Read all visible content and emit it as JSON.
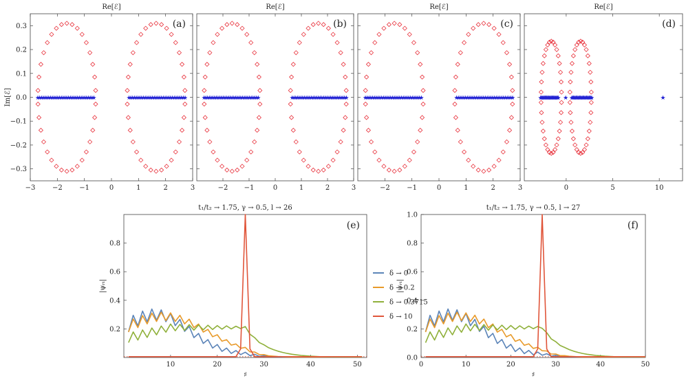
{
  "chart_data": [
    {
      "type": "scatter",
      "panel_label": "(a)",
      "title": "Re[ℰ]",
      "ylabel": "Im[ℰ]",
      "xlim": [
        -3,
        3
      ],
      "ylim": [
        -0.35,
        0.35
      ],
      "xticks": [
        -3,
        -2,
        -1,
        0,
        1,
        2,
        3
      ],
      "yticks": [
        -0.3,
        -0.2,
        -0.1,
        0.0,
        0.1,
        0.2,
        0.3
      ],
      "ytick_labels": [
        "−0.3",
        "−0.2",
        "−0.1",
        "0.0",
        "0.1",
        "0.2",
        "0.3"
      ],
      "xtick_labels": [
        "−3",
        "−2",
        "−1",
        "0",
        "1",
        "2",
        "3"
      ],
      "ellipse_left": {
        "cx": -1.65,
        "rx": 1.07,
        "ry": 0.31,
        "n": 34
      },
      "ellipse_right": {
        "cx": 1.65,
        "rx": 1.07,
        "ry": 0.31,
        "n": 34
      },
      "real_segments": [
        [
          -2.72,
          -0.65
        ],
        [
          0.65,
          2.72
        ]
      ],
      "real_points_per_segment": 32,
      "extra_real_points": [],
      "colors": {
        "open": "#e8323c",
        "real": "#2323d4"
      }
    },
    {
      "type": "scatter",
      "panel_label": "(b)",
      "title": "Re[ℰ]",
      "ylabel": "",
      "xlim": [
        -3,
        3
      ],
      "ylim": [
        -0.35,
        0.35
      ],
      "xticks": [
        -2,
        -1,
        0,
        1,
        2,
        3
      ],
      "xtick_labels": [
        "−2",
        "−1",
        "0",
        "1",
        "2",
        "3"
      ],
      "ellipse_left": {
        "cx": -1.65,
        "rx": 1.07,
        "ry": 0.31,
        "n": 34
      },
      "ellipse_right": {
        "cx": 1.65,
        "rx": 1.07,
        "ry": 0.31,
        "n": 34
      },
      "real_segments": [
        [
          -2.72,
          -0.65
        ],
        [
          0.65,
          2.72
        ]
      ],
      "real_points_per_segment": 32,
      "extra_real_points": [],
      "colors": {
        "open": "#e8323c",
        "real": "#2323d4"
      }
    },
    {
      "type": "scatter",
      "panel_label": "(c)",
      "title": "Re[ℰ]",
      "ylabel": "",
      "xlim": [
        -3,
        3
      ],
      "ylim": [
        -0.35,
        0.35
      ],
      "xticks": [
        -2,
        -1,
        0,
        1,
        2,
        3
      ],
      "xtick_labels": [
        "−2",
        "−1",
        "0",
        "1",
        "2",
        "3"
      ],
      "ellipse_left": {
        "cx": -1.65,
        "rx": 1.07,
        "ry": 0.31,
        "n": 34
      },
      "ellipse_right": {
        "cx": 1.65,
        "rx": 1.07,
        "ry": 0.31,
        "n": 34
      },
      "real_segments": [
        [
          -2.72,
          -0.65
        ],
        [
          0.65,
          2.72
        ]
      ],
      "real_points_per_segment": 32,
      "extra_real_points": [],
      "colors": {
        "open": "#e8323c",
        "real": "#2323d4"
      }
    },
    {
      "type": "scatter",
      "panel_label": "(d)",
      "title": "Re[ℰ]",
      "ylabel": "",
      "xlim": [
        -4.5,
        12.5
      ],
      "ylim": [
        -0.35,
        0.35
      ],
      "xticks": [
        0,
        5,
        10
      ],
      "xtick_labels": [
        "0",
        "5",
        "10"
      ],
      "ellipse_left": {
        "cx": -1.6,
        "rx": 1.1,
        "ry": 0.235,
        "n": 34
      },
      "ellipse_right": {
        "cx": 1.55,
        "rx": 1.15,
        "ry": 0.235,
        "n": 34
      },
      "real_segments": [
        [
          -2.75,
          -0.85
        ],
        [
          0.6,
          2.75
        ]
      ],
      "real_points_per_segment": 24,
      "extra_real_points": [
        -0.05,
        10.4
      ],
      "colors": {
        "open": "#e8323c",
        "real": "#2323d4"
      }
    },
    {
      "type": "line",
      "panel_label": "(e)",
      "title": "t₁/t₂ → 1.75, γ → 0.5, l → 26",
      "xlabel": "♯",
      "ylabel": "|ψᵣᵢ|",
      "xlim": [
        0,
        52
      ],
      "ylim": [
        0,
        1.0
      ],
      "xticks": [
        10,
        20,
        30,
        40,
        50
      ],
      "yticks": [
        0.2,
        0.4,
        0.6,
        0.8
      ],
      "ytick_labels": [
        "0.2",
        "0.4",
        "0.6",
        "0.8"
      ],
      "peak": 26,
      "series": [
        {
          "name": "δ → 0",
          "color": "#5b84b8"
        },
        {
          "name": "δ → 0.2",
          "color": "#e89a2a"
        },
        {
          "name": "δ → 0.3715",
          "color": "#8fb03a"
        },
        {
          "name": "δ → 10",
          "color": "#e0553a"
        }
      ]
    },
    {
      "type": "line",
      "panel_label": "(f)",
      "title": "t₁/t₂ → 1.75, γ → 0.5, l → 27",
      "xlabel": "♯",
      "ylabel": "|ψᵣᵢ|",
      "xlim": [
        0,
        50
      ],
      "ylim": [
        0,
        1.0
      ],
      "xticks": [
        0,
        10,
        20,
        30,
        40,
        50
      ],
      "yticks": [
        0.0,
        0.2,
        0.4,
        0.6,
        0.8,
        1.0
      ],
      "ytick_labels": [
        "0.0",
        "0.2",
        "0.4",
        "0.6",
        "0.8",
        "1.0"
      ],
      "peak": 27,
      "series": [
        {
          "name": "δ → 0",
          "color": "#5b84b8"
        },
        {
          "name": "δ → 0.2",
          "color": "#e89a2a"
        },
        {
          "name": "δ → 0.3715",
          "color": "#8fb03a"
        },
        {
          "name": "δ → 10",
          "color": "#e0553a"
        }
      ]
    }
  ]
}
